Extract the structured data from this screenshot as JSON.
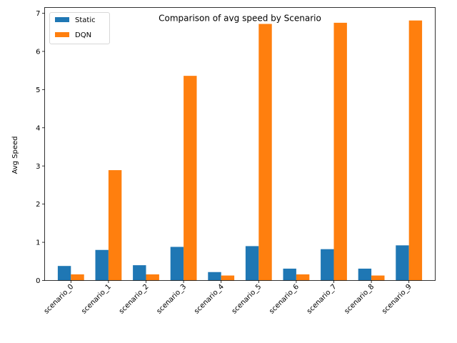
{
  "chart_data": {
    "type": "bar",
    "title": "Comparison of avg speed by Scenario",
    "xlabel": "",
    "ylabel": "Avg Speed",
    "categories": [
      "scenario_0",
      "scenario_1",
      "scenario_2",
      "scenario_3",
      "scenario_4",
      "scenario_5",
      "scenario_6",
      "scenario_7",
      "scenario_8",
      "scenario_9"
    ],
    "series": [
      {
        "name": "Static",
        "color": "#1f77b4",
        "values": [
          0.38,
          0.8,
          0.4,
          0.88,
          0.22,
          0.9,
          0.31,
          0.82,
          0.31,
          0.92
        ]
      },
      {
        "name": "DQN",
        "color": "#ff7f0e",
        "values": [
          0.16,
          2.89,
          0.16,
          5.36,
          0.13,
          6.72,
          0.16,
          6.75,
          0.13,
          6.81
        ]
      }
    ],
    "ylim": [
      0,
      7.15
    ],
    "yticks": [
      0,
      1,
      2,
      3,
      4,
      5,
      6,
      7
    ],
    "legend_position": "top-left",
    "grid": false
  }
}
